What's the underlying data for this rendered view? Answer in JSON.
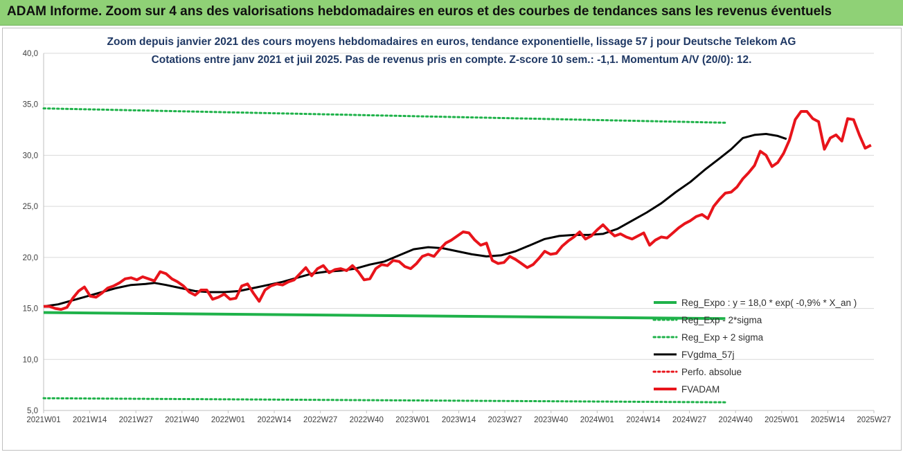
{
  "header": {
    "banner_title": "ADAM Informe. Zoom sur 4 ans des valorisations hebdomadaires en euros et des courbes de tendances sans les revenus éventuels"
  },
  "colors": {
    "banner_bg": "#8fd176",
    "subtitle": "#1f3864",
    "green": "#1fb24a",
    "black": "#000000",
    "red": "#e8141b"
  },
  "chart_data": {
    "type": "line",
    "title": "Zoom depuis janvier 2021 des cours moyens hebdomadaires en euros, tendance exponentielle, lissage 57 j pour Deutsche Telekom AG",
    "subtitle": "Cotations entre janv 2021 et juil 2025. Pas de revenus pris en compte. Z-score 10 sem.: -1,1. Momentum A/V (20/0): 12.",
    "ylim": [
      5,
      40
    ],
    "yticks": [
      "5,0",
      "10,0",
      "15,0",
      "20,0",
      "25,0",
      "30,0",
      "35,0",
      "40,0"
    ],
    "xticks": [
      "2021W01",
      "2021W14",
      "2021W27",
      "2021W40",
      "2022W01",
      "2022W14",
      "2022W27",
      "2022W40",
      "2023W01",
      "2023W14",
      "2023W27",
      "2023W40",
      "2024W01",
      "2024W14",
      "2024W27",
      "2024W40",
      "2025W01",
      "2025W14",
      "2025W27"
    ],
    "grid": "horizontal",
    "legend_position": "bottom-right",
    "series": [
      {
        "name": "Reg_Expo : y = 18,0 * exp( -0,9% *  X_an )",
        "color": "#1fb24a",
        "style": "solid",
        "points": [
          [
            0,
            14.6
          ],
          [
            234,
            14.0
          ]
        ]
      },
      {
        "name": "Reg_Exp - 2*sigma",
        "color": "#1fb24a",
        "style": "dotted",
        "points": [
          [
            0,
            6.2
          ],
          [
            234,
            5.8
          ]
        ]
      },
      {
        "name": "Reg_Exp + 2 sigma",
        "color": "#1fb24a",
        "style": "dotted",
        "points": [
          [
            0,
            34.6
          ],
          [
            234,
            33.2
          ]
        ]
      },
      {
        "name": "FVgdma_57j",
        "color": "#000000",
        "style": "solid",
        "points": [
          [
            0,
            15.2
          ],
          [
            5,
            15.4
          ],
          [
            10,
            15.8
          ],
          [
            15,
            16.2
          ],
          [
            20,
            16.6
          ],
          [
            25,
            17.0
          ],
          [
            30,
            17.3
          ],
          [
            35,
            17.4
          ],
          [
            38,
            17.5
          ],
          [
            42,
            17.3
          ],
          [
            47,
            17.0
          ],
          [
            52,
            16.7
          ],
          [
            57,
            16.6
          ],
          [
            62,
            16.6
          ],
          [
            67,
            16.7
          ],
          [
            72,
            17.0
          ],
          [
            77,
            17.3
          ],
          [
            82,
            17.6
          ],
          [
            87,
            18.0
          ],
          [
            92,
            18.4
          ],
          [
            97,
            18.6
          ],
          [
            102,
            18.7
          ],
          [
            107,
            18.9
          ],
          [
            112,
            19.3
          ],
          [
            117,
            19.6
          ],
          [
            122,
            20.2
          ],
          [
            127,
            20.8
          ],
          [
            132,
            21.0
          ],
          [
            137,
            20.9
          ],
          [
            142,
            20.6
          ],
          [
            147,
            20.3
          ],
          [
            152,
            20.1
          ],
          [
            157,
            20.2
          ],
          [
            162,
            20.6
          ],
          [
            167,
            21.2
          ],
          [
            172,
            21.8
          ],
          [
            177,
            22.1
          ],
          [
            182,
            22.2
          ],
          [
            187,
            22.2
          ],
          [
            192,
            22.3
          ],
          [
            197,
            22.8
          ],
          [
            202,
            23.6
          ],
          [
            207,
            24.4
          ],
          [
            212,
            25.3
          ],
          [
            217,
            26.4
          ],
          [
            222,
            27.4
          ],
          [
            227,
            28.6
          ],
          [
            232,
            29.7
          ],
          [
            236,
            30.6
          ],
          [
            240,
            31.7
          ],
          [
            244,
            32.0
          ],
          [
            248,
            32.1
          ],
          [
            252,
            31.9
          ],
          [
            255,
            31.6
          ]
        ]
      },
      {
        "name": "Perfo. absolue",
        "color": "#e8141b",
        "style": "dotted",
        "points": []
      },
      {
        "name": "FVADAM",
        "color": "#e8141b",
        "style": "solid",
        "points": [
          [
            0,
            15.2
          ],
          [
            2,
            15.2
          ],
          [
            4,
            15.0
          ],
          [
            6,
            14.9
          ],
          [
            8,
            15.1
          ],
          [
            10,
            16.0
          ],
          [
            12,
            16.7
          ],
          [
            14,
            17.1
          ],
          [
            16,
            16.2
          ],
          [
            18,
            16.1
          ],
          [
            20,
            16.5
          ],
          [
            22,
            17.0
          ],
          [
            24,
            17.2
          ],
          [
            26,
            17.5
          ],
          [
            28,
            17.9
          ],
          [
            30,
            18.0
          ],
          [
            32,
            17.8
          ],
          [
            34,
            18.1
          ],
          [
            36,
            17.9
          ],
          [
            38,
            17.7
          ],
          [
            40,
            18.6
          ],
          [
            42,
            18.4
          ],
          [
            44,
            17.9
          ],
          [
            46,
            17.6
          ],
          [
            48,
            17.2
          ],
          [
            50,
            16.6
          ],
          [
            52,
            16.3
          ],
          [
            54,
            16.8
          ],
          [
            56,
            16.8
          ],
          [
            58,
            15.9
          ],
          [
            60,
            16.1
          ],
          [
            62,
            16.4
          ],
          [
            64,
            15.9
          ],
          [
            66,
            16.0
          ],
          [
            68,
            17.2
          ],
          [
            70,
            17.4
          ],
          [
            72,
            16.5
          ],
          [
            74,
            15.7
          ],
          [
            76,
            16.8
          ],
          [
            78,
            17.2
          ],
          [
            80,
            17.4
          ],
          [
            82,
            17.3
          ],
          [
            84,
            17.6
          ],
          [
            86,
            17.8
          ],
          [
            88,
            18.4
          ],
          [
            90,
            19.0
          ],
          [
            92,
            18.2
          ],
          [
            94,
            18.9
          ],
          [
            96,
            19.2
          ],
          [
            98,
            18.5
          ],
          [
            100,
            18.8
          ],
          [
            102,
            18.9
          ],
          [
            104,
            18.7
          ],
          [
            106,
            19.2
          ],
          [
            108,
            18.6
          ],
          [
            110,
            17.8
          ],
          [
            112,
            17.9
          ],
          [
            114,
            18.9
          ],
          [
            116,
            19.3
          ],
          [
            118,
            19.2
          ],
          [
            120,
            19.7
          ],
          [
            122,
            19.6
          ],
          [
            124,
            19.1
          ],
          [
            126,
            18.9
          ],
          [
            128,
            19.4
          ],
          [
            130,
            20.1
          ],
          [
            132,
            20.3
          ],
          [
            134,
            20.1
          ],
          [
            136,
            20.8
          ],
          [
            138,
            21.4
          ],
          [
            140,
            21.7
          ],
          [
            142,
            22.1
          ],
          [
            144,
            22.5
          ],
          [
            146,
            22.4
          ],
          [
            148,
            21.7
          ],
          [
            150,
            21.2
          ],
          [
            152,
            21.4
          ],
          [
            154,
            19.7
          ],
          [
            156,
            19.4
          ],
          [
            158,
            19.5
          ],
          [
            160,
            20.1
          ],
          [
            162,
            19.8
          ],
          [
            164,
            19.4
          ],
          [
            166,
            19.0
          ],
          [
            168,
            19.3
          ],
          [
            170,
            19.9
          ],
          [
            172,
            20.6
          ],
          [
            174,
            20.3
          ],
          [
            176,
            20.4
          ],
          [
            178,
            21.1
          ],
          [
            180,
            21.6
          ],
          [
            182,
            22.0
          ],
          [
            184,
            22.5
          ],
          [
            186,
            21.8
          ],
          [
            188,
            22.1
          ],
          [
            190,
            22.7
          ],
          [
            192,
            23.2
          ],
          [
            194,
            22.6
          ],
          [
            196,
            22.1
          ],
          [
            198,
            22.3
          ],
          [
            200,
            22.0
          ],
          [
            202,
            21.8
          ],
          [
            204,
            22.1
          ],
          [
            206,
            22.4
          ],
          [
            208,
            21.2
          ],
          [
            210,
            21.7
          ],
          [
            212,
            22.0
          ],
          [
            214,
            21.9
          ],
          [
            216,
            22.4
          ],
          [
            218,
            22.9
          ],
          [
            220,
            23.3
          ],
          [
            222,
            23.6
          ],
          [
            224,
            24.0
          ],
          [
            226,
            24.2
          ],
          [
            228,
            23.8
          ],
          [
            230,
            25.0
          ],
          [
            232,
            25.7
          ],
          [
            234,
            26.3
          ],
          [
            236,
            26.4
          ],
          [
            238,
            26.9
          ],
          [
            240,
            27.7
          ],
          [
            242,
            28.3
          ],
          [
            244,
            29.0
          ],
          [
            246,
            30.4
          ],
          [
            248,
            30.0
          ],
          [
            250,
            28.9
          ],
          [
            252,
            29.3
          ],
          [
            254,
            30.2
          ],
          [
            256,
            31.5
          ],
          [
            258,
            33.5
          ],
          [
            260,
            34.3
          ],
          [
            262,
            34.3
          ],
          [
            264,
            33.6
          ],
          [
            266,
            33.3
          ],
          [
            268,
            30.6
          ],
          [
            270,
            31.7
          ],
          [
            272,
            32.0
          ],
          [
            274,
            31.4
          ],
          [
            276,
            33.6
          ],
          [
            278,
            33.5
          ],
          [
            280,
            32.0
          ],
          [
            282,
            30.7
          ],
          [
            284,
            31.0
          ]
        ]
      }
    ],
    "xmax": 285
  }
}
